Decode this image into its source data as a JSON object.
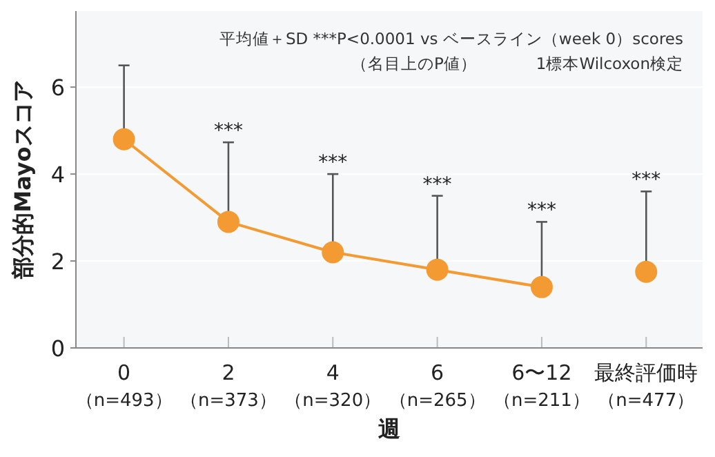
{
  "chart_data": {
    "type": "line",
    "xlabel": "週",
    "ylabel": "部分的Mayoスコア",
    "categories": [
      "0（n=493）",
      "2（n=373）",
      "4（n=320）",
      "6（n=265）",
      "6〜12（n=211）",
      "最終評価時（n=477）"
    ],
    "series": [
      {
        "type": "line",
        "color": "#f39a33",
        "values": [
          4.8,
          2.9,
          2.2,
          1.8,
          1.4,
          null
        ],
        "errors": [
          [
            4.8,
            6.5
          ],
          [
            2.9,
            4.73
          ],
          [
            2.2,
            4.0
          ],
          [
            1.8,
            3.5
          ],
          [
            1.4,
            2.9
          ],
          null
        ]
      },
      {
        "type": "scatter",
        "color": "#f39a33",
        "values": [
          null,
          null,
          null,
          null,
          null,
          1.75
        ],
        "errors": [
          null,
          null,
          null,
          null,
          null,
          [
            1.75,
            3.6
          ]
        ]
      }
    ],
    "marker": "circle",
    "ylim": [
      0,
      7.75
    ],
    "yticks": [
      0,
      2,
      4,
      6
    ],
    "grid": "y",
    "annotations": [
      "平均値＋SD ***P<0.0001 vs ベースライン（week 0）scores",
      "（名目上のP値）",
      "1標本Wilcoxon検定",
      {
        "text": "***",
        "x": "2（n=373）",
        "y": 4.73
      },
      {
        "text": "***",
        "x": "4（n=320）",
        "y": 4.0
      },
      {
        "text": "***",
        "x": "6（n=265）",
        "y": 3.5
      },
      {
        "text": "***",
        "x": "6〜12（n=211）",
        "y": 2.9
      },
      {
        "text": "***",
        "x": "最終評価時（n=477）",
        "y": 3.6
      }
    ]
  }
}
